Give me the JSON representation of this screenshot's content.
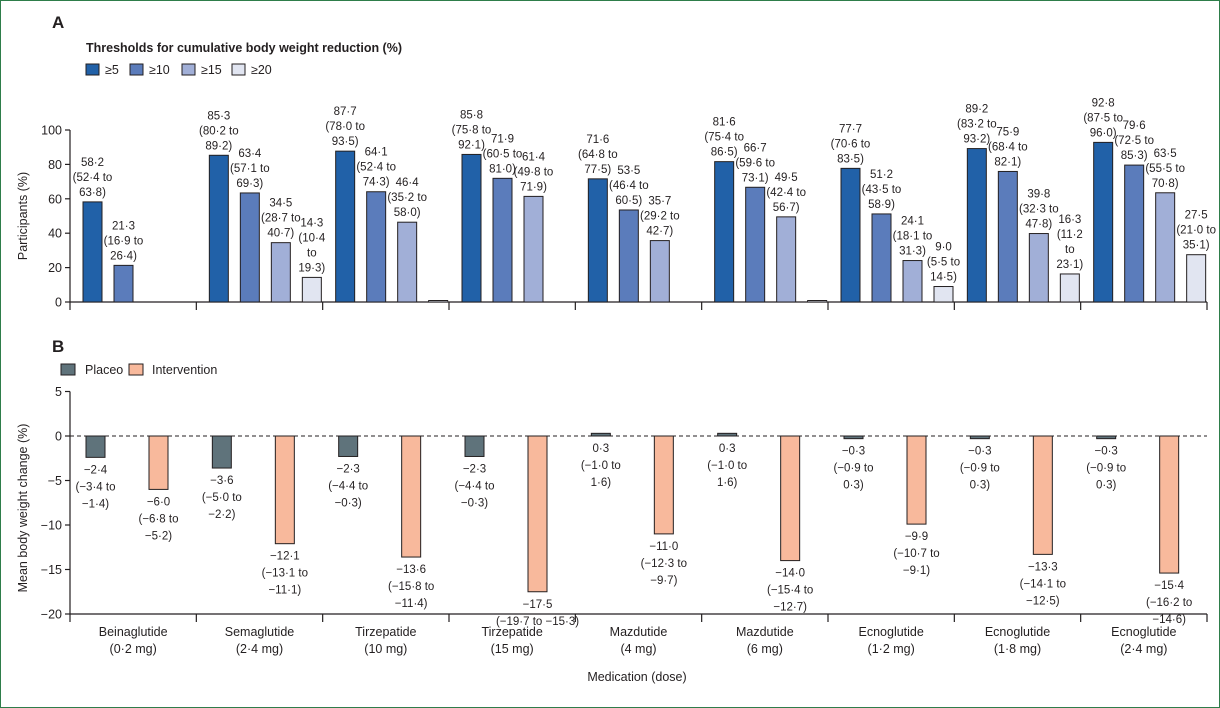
{
  "chart_data": [
    {
      "panel": "A",
      "type": "bar",
      "legend_title": "Thresholds for cumulative body weight reduction (%)",
      "legend_placement": "top-left",
      "ylabel": "Participants (%)",
      "xlabel": "",
      "ylim": [
        0,
        100
      ],
      "yticks": [
        "0",
        "20",
        "40",
        "60",
        "80",
        "100"
      ],
      "ytick_values": [
        0,
        20,
        40,
        60,
        80,
        100
      ],
      "grid": false,
      "categories": [
        [
          "Beinaglutide",
          "(0·2 mg)"
        ],
        [
          "Semaglutide",
          "(2·4 mg)"
        ],
        [
          "Tirzepatide",
          "(10 mg)"
        ],
        [
          "Tirzepatide",
          "(15 mg)"
        ],
        [
          "Mazdutide",
          "(4 mg)"
        ],
        [
          "Mazdutide",
          "(6 mg)"
        ],
        [
          "Ecnoglutide",
          "(1·2 mg)"
        ],
        [
          "Ecnoglutide",
          "(1·8 mg)"
        ],
        [
          "Ecnoglutide",
          "(2·4 mg)"
        ]
      ],
      "series": [
        {
          "name": "≥5",
          "color": "#2161a8",
          "values": [
            58.2,
            85.3,
            87.7,
            85.8,
            71.6,
            81.6,
            77.7,
            89.2,
            92.8
          ],
          "labels": [
            [
              "58·2",
              "(52·4 to",
              "63·8)"
            ],
            [
              "85·3",
              "(80·2 to",
              "89·2)"
            ],
            [
              "87·7",
              "(78·0 to",
              "93·5)"
            ],
            [
              "85·8",
              "(75·8 to",
              "92·1)"
            ],
            [
              "71·6",
              "(64·8 to",
              "77·5)"
            ],
            [
              "81·6",
              "(75·4 to",
              "86·5)"
            ],
            [
              "77·7",
              "(70·6 to",
              "83·5)"
            ],
            [
              "89·2",
              "(83·2 to",
              "93·2)"
            ],
            [
              "92·8",
              "(87·5 to",
              "96·0)"
            ]
          ]
        },
        {
          "name": "≥10",
          "color": "#5b7cbb",
          "values": [
            21.3,
            63.4,
            64.1,
            71.9,
            53.5,
            66.7,
            51.2,
            75.9,
            79.6
          ],
          "labels": [
            [
              "21·3",
              "(16·9 to",
              "26·4)"
            ],
            [
              "63·4",
              "(57·1 to",
              "69·3)"
            ],
            [
              "64·1",
              "(52·4 to",
              "74·3)"
            ],
            [
              "71·9",
              "(60·5 to",
              "81·0)"
            ],
            [
              "53·5",
              "(46·4 to",
              "60·5)"
            ],
            [
              "66·7",
              "(59·6 to",
              "73·1)"
            ],
            [
              "51·2",
              "(43·5 to",
              "58·9)"
            ],
            [
              "75·9",
              "(68·4 to",
              "82·1)"
            ],
            [
              "79·6",
              "(72·5 to",
              "85·3)"
            ]
          ]
        },
        {
          "name": "≥15",
          "color": "#a1afd7",
          "values": [
            null,
            34.5,
            46.4,
            61.4,
            35.7,
            49.5,
            24.1,
            39.8,
            63.5
          ],
          "labels": [
            [],
            [
              "34·5",
              "(28·7 to",
              "40·7)"
            ],
            [
              "46·4",
              "(35·2 to",
              "58·0)"
            ],
            [
              "61·4",
              "(49·8 to",
              "71·9)"
            ],
            [
              "35·7",
              "(29·2 to",
              "42·7)"
            ],
            [
              "49·5",
              "(42·4 to",
              "56·7)"
            ],
            [
              "24·1",
              "(18·1 to",
              "31·3)"
            ],
            [
              "39·8",
              "(32·3 to",
              "47·8)"
            ],
            [
              "63·5",
              "(55·5 to",
              "70·8)"
            ]
          ]
        },
        {
          "name": "≥20",
          "color": "#e1e5f1",
          "values": [
            null,
            14.3,
            0,
            null,
            null,
            0,
            9.0,
            16.3,
            27.5
          ],
          "labels": [
            [],
            [
              "14·3",
              "(10·4",
              "to",
              "19·3)"
            ],
            [],
            [],
            [],
            [],
            [
              "9·0",
              "(5·5 to",
              "14·5)"
            ],
            [
              "16·3",
              "(11·2",
              "to",
              "23·1)"
            ],
            [
              "27·5",
              "(21·0 to",
              "35·1)"
            ]
          ]
        }
      ]
    },
    {
      "panel": "B",
      "type": "bar",
      "legend_placement": "top-left",
      "ylabel": "Mean body weight change (%)",
      "xlabel": "Medication (dose)",
      "ylim": [
        -20,
        5
      ],
      "yticks": [
        "5",
        "0",
        "−5",
        "−10",
        "−15",
        "−20"
      ],
      "ytick_values": [
        5,
        0,
        -5,
        -10,
        -15,
        -20
      ],
      "reference_line": {
        "value": 0,
        "style": "dashed"
      },
      "grid": false,
      "categories": [
        [
          "Beinaglutide",
          "(0·2 mg)"
        ],
        [
          "Semaglutide",
          "(2·4 mg)"
        ],
        [
          "Tirzepatide",
          "(10 mg)"
        ],
        [
          "Tirzepatide",
          "(15 mg)"
        ],
        [
          "Mazdutide",
          "(4 mg)"
        ],
        [
          "Mazdutide",
          "(6 mg)"
        ],
        [
          "Ecnoglutide",
          "(1·2 mg)"
        ],
        [
          "Ecnoglutide",
          "(1·8 mg)"
        ],
        [
          "Ecnoglutide",
          "(2·4 mg)"
        ]
      ],
      "series": [
        {
          "name": "Placeo",
          "color": "#5f737b",
          "values": [
            -2.4,
            -3.6,
            -2.3,
            -2.3,
            0.3,
            0.3,
            -0.3,
            -0.3,
            -0.3
          ],
          "labels": [
            [
              "−2·4",
              "(−3·4 to",
              "−1·4)"
            ],
            [
              "−3·6",
              "(−5·0 to",
              "−2·2)"
            ],
            [
              "−2·3",
              "(−4·4 to",
              "−0·3)"
            ],
            [
              "−2·3",
              "(−4·4 to",
              "−0·3)"
            ],
            [
              "0·3",
              "(−1·0 to",
              "1·6)"
            ],
            [
              "0·3",
              "(−1·0 to",
              "1·6)"
            ],
            [
              "−0·3",
              "(−0·9 to",
              "0·3)"
            ],
            [
              "−0·3",
              "(−0·9 to",
              "0·3)"
            ],
            [
              "−0·3",
              "(−0·9 to",
              "0·3)"
            ]
          ]
        },
        {
          "name": "Intervention",
          "color": "#f8b99c",
          "values": [
            -6.0,
            -12.1,
            -13.6,
            -17.5,
            -11.0,
            -14.0,
            -9.9,
            -13.3,
            -15.4
          ],
          "labels": [
            [
              "−6·0",
              "(−6·8 to",
              "−5·2)"
            ],
            [
              "−12·1",
              "(−13·1 to",
              "−11·1)"
            ],
            [
              "−13·6",
              "(−15·8 to",
              "−11·4)"
            ],
            [
              "−17·5",
              "(−19·7 to −15·3)"
            ],
            [
              "−11·0",
              "(−12·3 to",
              "−9·7)"
            ],
            [
              "−14·0",
              "(−15·4 to",
              "−12·7)"
            ],
            [
              "−9·9",
              "(−10·7 to",
              "−9·1)"
            ],
            [
              "−13·3",
              "(−14·1 to",
              "−12·5)"
            ],
            [
              "−15·4",
              "(−16·2 to",
              "−14·6)"
            ]
          ]
        }
      ]
    }
  ]
}
